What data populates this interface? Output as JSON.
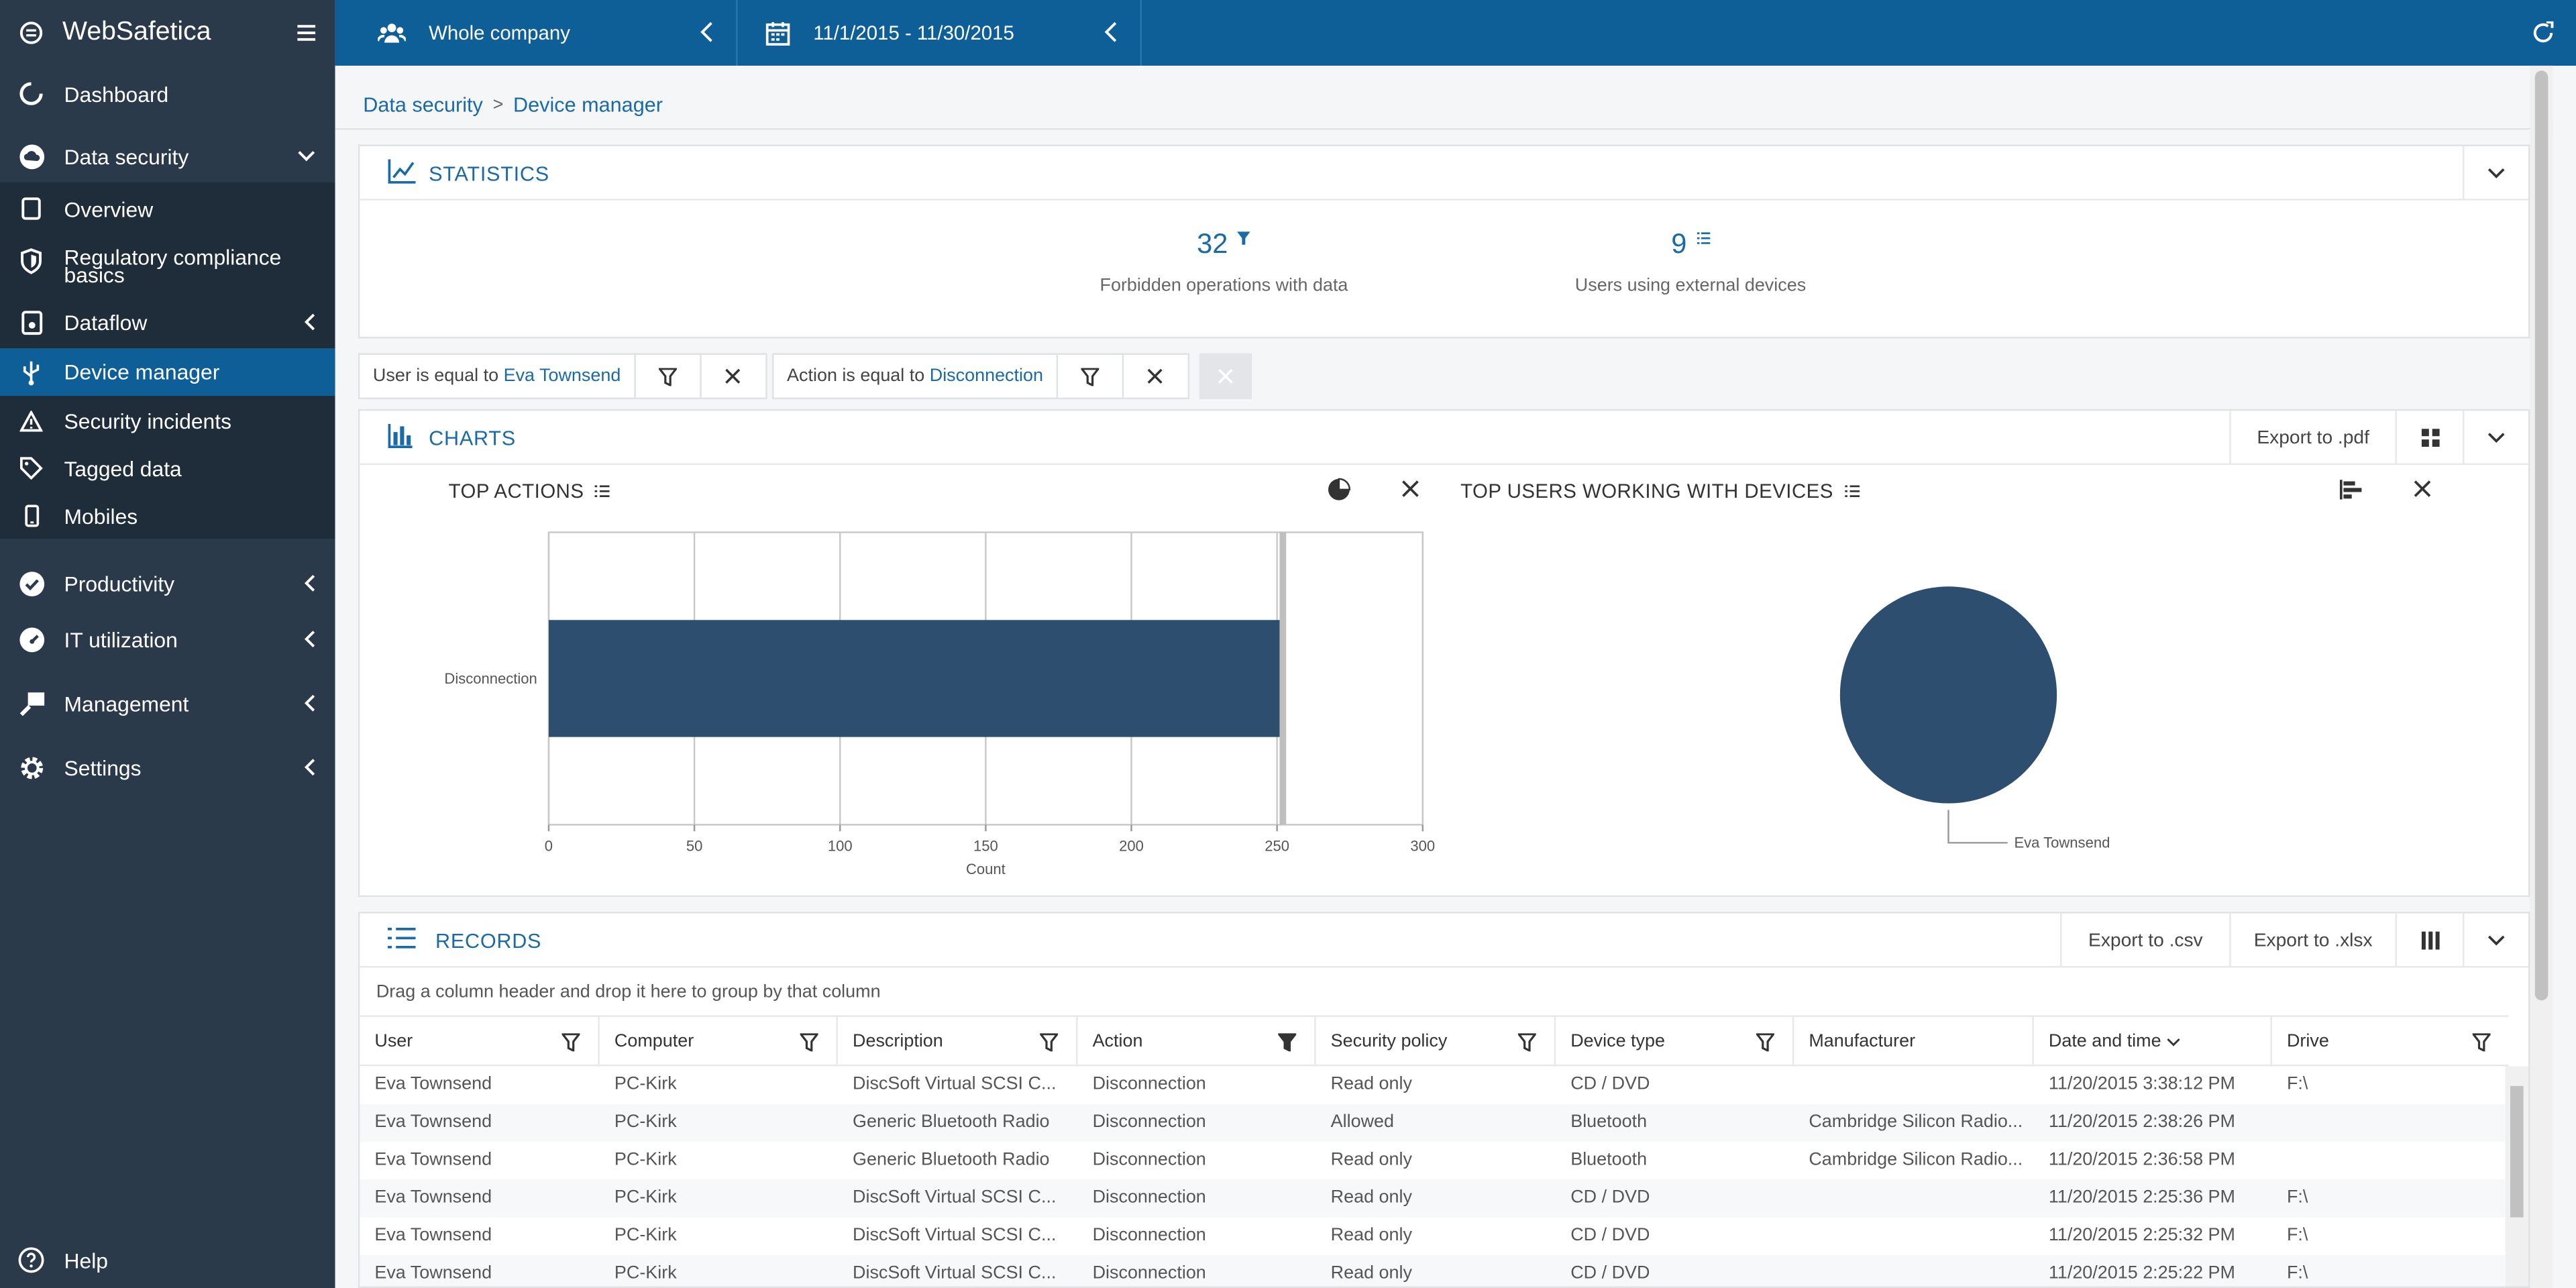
{
  "app": {
    "name": "WebSafetica"
  },
  "sidebar": {
    "items": [
      {
        "label": "Dashboard",
        "icon": "dashboard-icon"
      },
      {
        "label": "Data security",
        "icon": "cloud-icon"
      },
      {
        "label": "Overview",
        "icon": "document-icon"
      },
      {
        "label": "Regulatory compliance basics",
        "icon": "shield-icon"
      },
      {
        "label": "Dataflow",
        "icon": "dataflow-icon"
      },
      {
        "label": "Device manager",
        "icon": "usb-icon"
      },
      {
        "label": "Security incidents",
        "icon": "warning-icon"
      },
      {
        "label": "Tagged data",
        "icon": "tag-icon"
      },
      {
        "label": "Mobiles",
        "icon": "mobile-icon"
      },
      {
        "label": "Productivity",
        "icon": "check-circle-icon"
      },
      {
        "label": "IT utilization",
        "icon": "gauge-icon"
      },
      {
        "label": "Management",
        "icon": "management-icon"
      },
      {
        "label": "Settings",
        "icon": "gear-icon"
      }
    ],
    "help": "Help"
  },
  "topbar": {
    "scope": "Whole company",
    "date_range": "11/1/2015 - 11/30/2015"
  },
  "breadcrumb": {
    "parent": "Data security",
    "current": "Device manager"
  },
  "statistics": {
    "title": "STATISTICS",
    "stats": [
      {
        "value": "32",
        "label": "Forbidden operations with data"
      },
      {
        "value": "9",
        "label": "Users using external devices"
      }
    ]
  },
  "filters": [
    {
      "prefix": "User is equal to",
      "value": "Eva Townsend"
    },
    {
      "prefix": "Action is equal to",
      "value": "Disconnection"
    }
  ],
  "charts": {
    "title": "CHARTS",
    "export_pdf": "Export to .pdf",
    "top_actions_title": "TOP ACTIONS",
    "top_users_title": "TOP USERS WORKING WITH DEVICES"
  },
  "chart_data": [
    {
      "type": "bar",
      "orientation": "horizontal",
      "title": "TOP ACTIONS",
      "categories": [
        "Disconnection"
      ],
      "values": [
        252
      ],
      "xlabel": "Count",
      "ylabel": "",
      "xlim": [
        0,
        300
      ],
      "ticks": [
        "0",
        "50",
        "100",
        "150",
        "200",
        "250",
        "300"
      ],
      "grid": true,
      "color": "#2d4e6e"
    },
    {
      "type": "pie",
      "title": "TOP USERS WORKING WITH DEVICES",
      "categories": [
        "Eva Townsend"
      ],
      "values": [
        100
      ],
      "color": "#2d4e6e"
    }
  ],
  "records": {
    "title": "RECORDS",
    "export_csv": "Export to .csv",
    "export_xlsx": "Export to .xlsx",
    "group_hint": "Drag a column header and drop it here to group by that column",
    "columns": [
      "User",
      "Computer",
      "Description",
      "Action",
      "Security policy",
      "Device type",
      "Manufacturer",
      "Date and time",
      "Drive"
    ],
    "rows": [
      [
        "Eva Townsend",
        "PC-Kirk",
        "DiscSoft Virtual SCSI C...",
        "Disconnection",
        "Read only",
        "CD / DVD",
        "",
        "11/20/2015 3:38:12 PM",
        "F:\\"
      ],
      [
        "Eva Townsend",
        "PC-Kirk",
        "Generic Bluetooth Radio",
        "Disconnection",
        "Allowed",
        "Bluetooth",
        "Cambridge Silicon Radio...",
        "11/20/2015 2:38:26 PM",
        ""
      ],
      [
        "Eva Townsend",
        "PC-Kirk",
        "Generic Bluetooth Radio",
        "Disconnection",
        "Read only",
        "Bluetooth",
        "Cambridge Silicon Radio...",
        "11/20/2015 2:36:58 PM",
        ""
      ],
      [
        "Eva Townsend",
        "PC-Kirk",
        "DiscSoft Virtual SCSI C...",
        "Disconnection",
        "Read only",
        "CD / DVD",
        "",
        "11/20/2015 2:25:36 PM",
        "F:\\"
      ],
      [
        "Eva Townsend",
        "PC-Kirk",
        "DiscSoft Virtual SCSI C...",
        "Disconnection",
        "Read only",
        "CD / DVD",
        "",
        "11/20/2015 2:25:32 PM",
        "F:\\"
      ],
      [
        "Eva Townsend",
        "PC-Kirk",
        "DiscSoft Virtual SCSI C...",
        "Disconnection",
        "Read only",
        "CD / DVD",
        "",
        "11/20/2015 2:25:22 PM",
        "F:\\"
      ]
    ]
  },
  "colors": {
    "accent": "#0e5f98",
    "sidebar": "#2b3a4a",
    "bar": "#2d4e6e"
  }
}
